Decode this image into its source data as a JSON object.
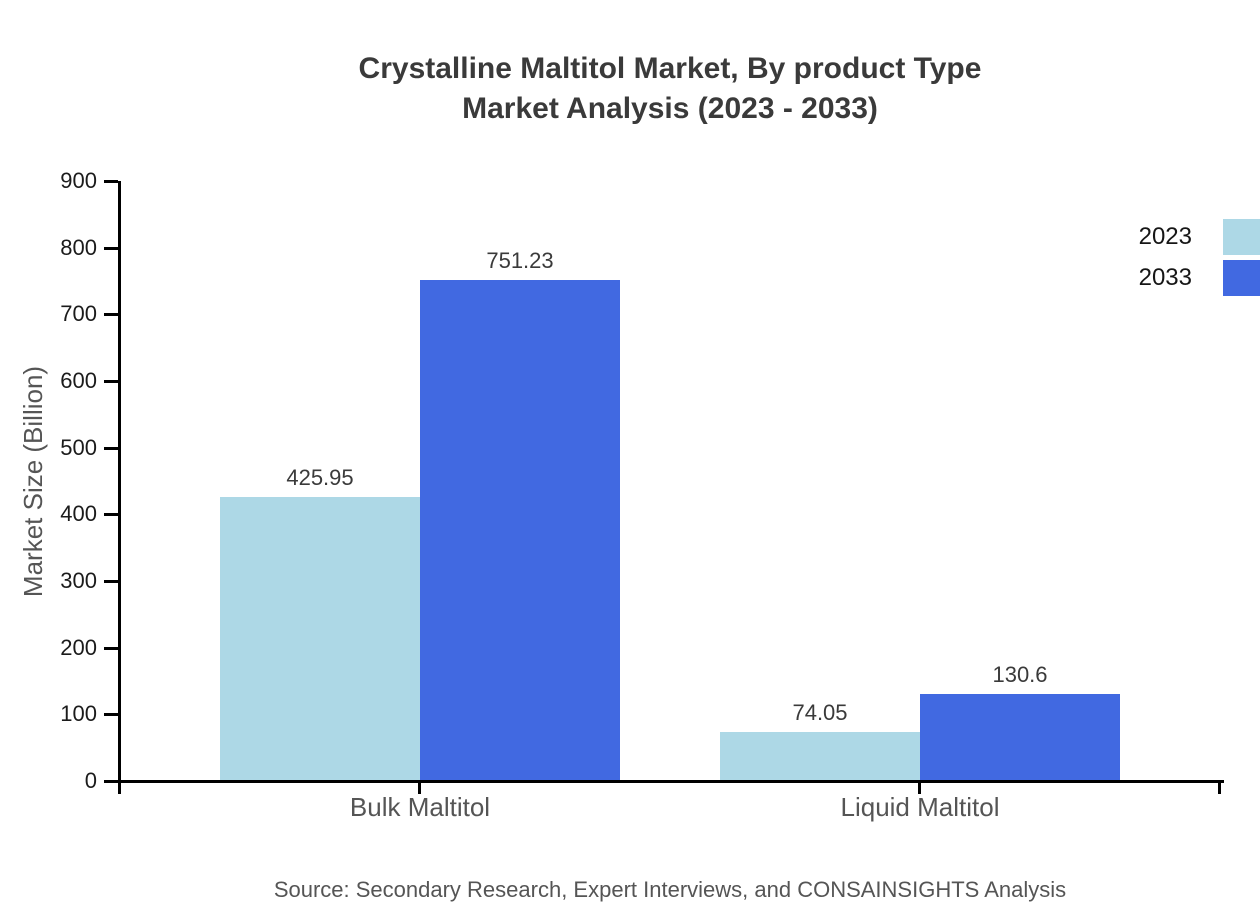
{
  "title_line1": "Crystalline Maltitol Market, By product Type",
  "title_line2": "Market Analysis (2023 - 2033)",
  "source": "Source: Secondary Research, Expert Interviews, and CONSAINSIGHTS Analysis",
  "chart_data": {
    "type": "bar",
    "title": "Crystalline Maltitol Market, By product Type Market Analysis (2023 - 2033)",
    "categories": [
      "Bulk Maltitol",
      "Liquid Maltitol"
    ],
    "series": [
      {
        "name": "2023",
        "color": "#ADD8E6",
        "values": [
          425.95,
          74.05
        ],
        "labels": [
          "425.95",
          "74.05"
        ]
      },
      {
        "name": "2033",
        "color": "#4169E1",
        "values": [
          751.23,
          130.6
        ],
        "labels": [
          "751.23",
          "130.6"
        ]
      }
    ],
    "xlabel": "",
    "ylabel": "Market Size (Billion)",
    "ylim": [
      0,
      900
    ],
    "yticks": [
      0,
      100,
      200,
      300,
      400,
      500,
      600,
      700,
      800,
      900
    ],
    "grid": false,
    "legend_position": "right-edge",
    "axis_color": "#000000",
    "text_colors": {
      "title": "#3a3a3a",
      "ticks": "#1b1b1b",
      "axis_titles": "#555555",
      "source": "#555555"
    }
  }
}
